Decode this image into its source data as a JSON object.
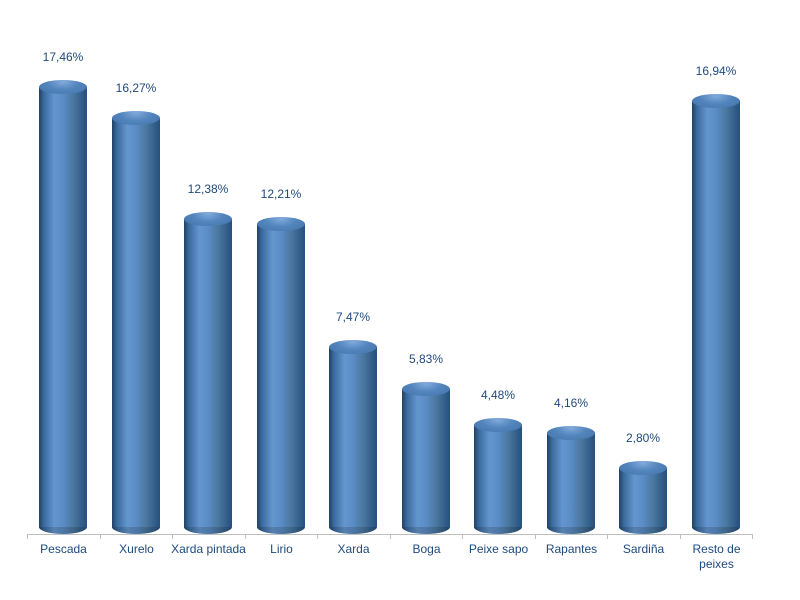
{
  "chart_data": {
    "type": "bar",
    "subtype": "cylinder-3d",
    "title": "",
    "xlabel": "",
    "ylabel": "",
    "unit": "%",
    "grid": false,
    "legend": false,
    "ylim": [
      0,
      19
    ],
    "categories": [
      "Pescada",
      "Xurelo",
      "Xarda pintada",
      "Lirio",
      "Xarda",
      "Boga",
      "Peixe sapo",
      "Rapantes",
      "Sardiña",
      "Resto de peixes"
    ],
    "values": [
      17.46,
      16.27,
      12.38,
      12.21,
      7.47,
      5.83,
      4.48,
      4.16,
      2.8,
      16.94
    ],
    "value_labels": [
      "17,46%",
      "16,27%",
      "12,38%",
      "12,21%",
      "7,47%",
      "5,83%",
      "4,48%",
      "4,16%",
      "2,80%",
      "16,94%"
    ],
    "colors": {
      "bar_highlight": "#6496CE",
      "bar_mid": "#4F81BD",
      "bar_dark_edge": "#1F4265",
      "cap_top": "#4E80BA",
      "label_text": "#1F497D",
      "axis_line": "#BFBFBF",
      "background": "#FFFFFF"
    }
  }
}
